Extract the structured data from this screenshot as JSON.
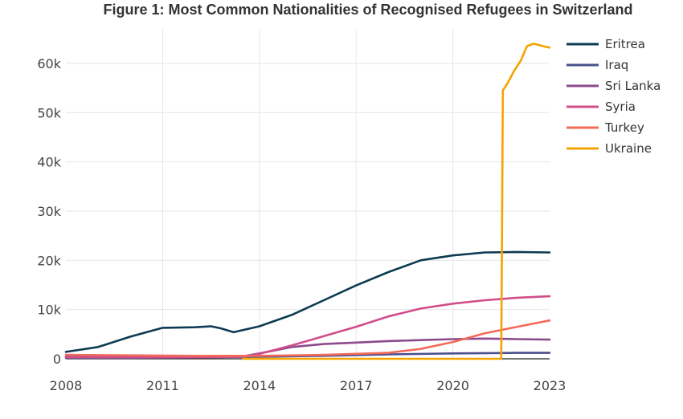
{
  "chart_data": {
    "type": "line",
    "title": "Figure 1: Most Common Nationalities of Recognised Refugees in Switzerland",
    "xlabel": "",
    "ylabel": "",
    "xlim": [
      2008,
      2023
    ],
    "ylim": [
      0,
      67000
    ],
    "x_ticks": [
      2008,
      2011,
      2014,
      2017,
      2020,
      2023
    ],
    "x_tick_labels": [
      "2008",
      "2011",
      "2014",
      "2017",
      "2020",
      "2023"
    ],
    "y_ticks": [
      0,
      10000,
      20000,
      30000,
      40000,
      50000,
      60000
    ],
    "y_tick_labels": [
      "0",
      "10k",
      "20k",
      "30k",
      "40k",
      "50k",
      "60k"
    ],
    "grid": true,
    "legend_position": "right",
    "series": [
      {
        "name": "Eritrea",
        "color": "#0d3b53",
        "points": [
          [
            2008,
            1400
          ],
          [
            2009,
            2400
          ],
          [
            2010,
            4500
          ],
          [
            2011,
            6300
          ],
          [
            2012,
            6400
          ],
          [
            2012.5,
            6600
          ],
          [
            2012.8,
            6200
          ],
          [
            2013.2,
            5400
          ],
          [
            2014,
            6600
          ],
          [
            2015,
            8900
          ],
          [
            2016,
            11900
          ],
          [
            2017,
            14900
          ],
          [
            2018,
            17600
          ],
          [
            2019,
            20000
          ],
          [
            2020,
            21000
          ],
          [
            2021,
            21600
          ],
          [
            2022,
            21700
          ],
          [
            2023,
            21600
          ]
        ]
      },
      {
        "name": "Iraq",
        "color": "#4b4f8c",
        "points": [
          [
            2008,
            200
          ],
          [
            2010,
            200
          ],
          [
            2012,
            300
          ],
          [
            2014,
            400
          ],
          [
            2016,
            600
          ],
          [
            2018,
            900
          ],
          [
            2020,
            1100
          ],
          [
            2022,
            1200
          ],
          [
            2023,
            1200
          ]
        ]
      },
      {
        "name": "Sri Lanka",
        "color": "#8c4a8c",
        "points": [
          [
            2008,
            400
          ],
          [
            2010,
            400
          ],
          [
            2012,
            400
          ],
          [
            2013.5,
            500
          ],
          [
            2014,
            1100
          ],
          [
            2015,
            2400
          ],
          [
            2016,
            3000
          ],
          [
            2017,
            3300
          ],
          [
            2018,
            3600
          ],
          [
            2019,
            3800
          ],
          [
            2020,
            4000
          ],
          [
            2021,
            4100
          ],
          [
            2022,
            4000
          ],
          [
            2023,
            3900
          ]
        ]
      },
      {
        "name": "Syria",
        "color": "#d14d8a",
        "points": [
          [
            2008,
            300
          ],
          [
            2012,
            300
          ],
          [
            2013.5,
            400
          ],
          [
            2014,
            1000
          ],
          [
            2015,
            2700
          ],
          [
            2016,
            4600
          ],
          [
            2017,
            6500
          ],
          [
            2018,
            8600
          ],
          [
            2019,
            10200
          ],
          [
            2020,
            11200
          ],
          [
            2021,
            11900
          ],
          [
            2022,
            12400
          ],
          [
            2023,
            12700
          ]
        ]
      },
      {
        "name": "Turkey",
        "color": "#f26b5b",
        "points": [
          [
            2008,
            800
          ],
          [
            2010,
            700
          ],
          [
            2012,
            600
          ],
          [
            2014,
            600
          ],
          [
            2016,
            800
          ],
          [
            2018,
            1200
          ],
          [
            2019,
            2000
          ],
          [
            2020,
            3400
          ],
          [
            2021,
            5200
          ],
          [
            2022,
            6500
          ],
          [
            2023,
            7800
          ]
        ]
      },
      {
        "name": "Ukraine",
        "color": "#f5a300",
        "points": [
          [
            2013.5,
            0
          ],
          [
            2021.4,
            0
          ],
          [
            2021.5,
            0
          ],
          [
            2021.55,
            54500
          ],
          [
            2021.7,
            56000
          ],
          [
            2021.9,
            58500
          ],
          [
            2022.1,
            60500
          ],
          [
            2022.3,
            63500
          ],
          [
            2022.5,
            64000
          ],
          [
            2022.8,
            63500
          ],
          [
            2023,
            63200
          ]
        ]
      }
    ]
  }
}
